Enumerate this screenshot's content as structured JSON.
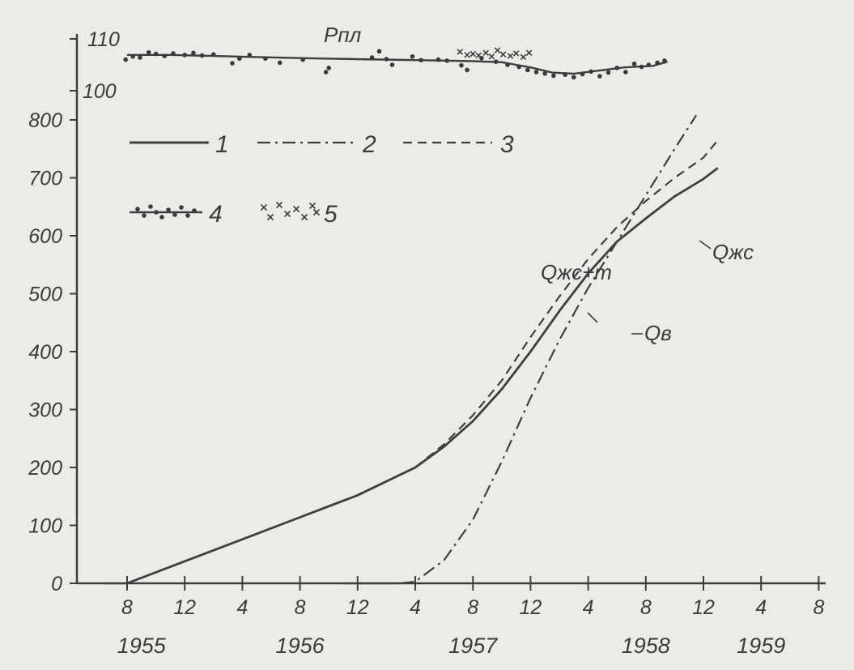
{
  "chart_data": {
    "type": "line",
    "title": "",
    "pressure_panel": {
      "label": "Pпл",
      "ytick_labels": [
        "110",
        "100"
      ],
      "ylim": [
        98,
        112
      ],
      "trend": [
        {
          "x": 8.0,
          "y": 106.9
        },
        {
          "x": 11.0,
          "y": 106.9
        },
        {
          "x": 14.0,
          "y": 106.7
        },
        {
          "x": 17.0,
          "y": 106.5
        },
        {
          "x": 20.0,
          "y": 106.3
        },
        {
          "x": 24.0,
          "y": 106.1
        },
        {
          "x": 28.0,
          "y": 105.9
        },
        {
          "x": 32.0,
          "y": 105.7
        },
        {
          "x": 34.0,
          "y": 105.5
        },
        {
          "x": 36.0,
          "y": 104.5
        },
        {
          "x": 37.5,
          "y": 103.5
        },
        {
          "x": 39.0,
          "y": 103.3
        },
        {
          "x": 40.5,
          "y": 103.8
        },
        {
          "x": 42.5,
          "y": 104.5
        },
        {
          "x": 44.5,
          "y": 104.8
        },
        {
          "x": 45.5,
          "y": 105.6
        }
      ],
      "points": [
        {
          "x": 7.9,
          "y": 106.0
        },
        {
          "x": 8.4,
          "y": 106.6
        },
        {
          "x": 8.9,
          "y": 106.4
        },
        {
          "x": 9.5,
          "y": 107.4
        },
        {
          "x": 10.0,
          "y": 107.1
        },
        {
          "x": 10.6,
          "y": 106.7
        },
        {
          "x": 11.2,
          "y": 107.2
        },
        {
          "x": 12.0,
          "y": 106.9
        },
        {
          "x": 12.6,
          "y": 107.3
        },
        {
          "x": 13.2,
          "y": 106.8
        },
        {
          "x": 14.0,
          "y": 107.0
        },
        {
          "x": 15.3,
          "y": 105.3
        },
        {
          "x": 15.8,
          "y": 106.2
        },
        {
          "x": 16.5,
          "y": 106.9
        },
        {
          "x": 17.6,
          "y": 106.2
        },
        {
          "x": 18.6,
          "y": 105.4
        },
        {
          "x": 20.2,
          "y": 106.0
        },
        {
          "x": 21.8,
          "y": 103.6
        },
        {
          "x": 22.0,
          "y": 104.4
        },
        {
          "x": 25.0,
          "y": 106.4
        },
        {
          "x": 25.5,
          "y": 107.6
        },
        {
          "x": 26.0,
          "y": 106.1
        },
        {
          "x": 26.4,
          "y": 105.0
        },
        {
          "x": 27.8,
          "y": 106.6
        },
        {
          "x": 28.4,
          "y": 105.9
        },
        {
          "x": 29.6,
          "y": 106.0
        },
        {
          "x": 30.2,
          "y": 105.8
        },
        {
          "x": 31.2,
          "y": 104.9
        },
        {
          "x": 31.6,
          "y": 104.0
        },
        {
          "x": 32.6,
          "y": 106.3
        },
        {
          "x": 33.6,
          "y": 105.6
        },
        {
          "x": 34.4,
          "y": 105.0
        },
        {
          "x": 35.2,
          "y": 104.6
        },
        {
          "x": 35.8,
          "y": 104.0
        },
        {
          "x": 36.4,
          "y": 103.6
        },
        {
          "x": 37.0,
          "y": 103.3
        },
        {
          "x": 37.6,
          "y": 102.9
        },
        {
          "x": 38.4,
          "y": 103.1
        },
        {
          "x": 39.0,
          "y": 102.6
        },
        {
          "x": 39.6,
          "y": 103.2
        },
        {
          "x": 40.2,
          "y": 103.7
        },
        {
          "x": 40.8,
          "y": 102.8
        },
        {
          "x": 41.4,
          "y": 103.5
        },
        {
          "x": 42.0,
          "y": 104.4
        },
        {
          "x": 42.6,
          "y": 103.6
        },
        {
          "x": 43.2,
          "y": 105.2
        },
        {
          "x": 43.7,
          "y": 104.6
        },
        {
          "x": 44.2,
          "y": 105.0
        },
        {
          "x": 44.8,
          "y": 105.4
        },
        {
          "x": 45.3,
          "y": 105.8
        }
      ],
      "crosses": [
        {
          "x": 31.1,
          "y": 107.5
        },
        {
          "x": 31.6,
          "y": 106.9
        },
        {
          "x": 32.0,
          "y": 107.1
        },
        {
          "x": 32.4,
          "y": 106.8
        },
        {
          "x": 32.9,
          "y": 107.3
        },
        {
          "x": 33.3,
          "y": 106.6
        },
        {
          "x": 33.7,
          "y": 107.8
        },
        {
          "x": 34.1,
          "y": 107.0
        },
        {
          "x": 34.6,
          "y": 106.7
        },
        {
          "x": 35.0,
          "y": 107.2
        },
        {
          "x": 35.5,
          "y": 106.5
        },
        {
          "x": 35.9,
          "y": 107.3
        }
      ]
    },
    "main_panel": {
      "ytick_labels": [
        "0",
        "100",
        "200",
        "300",
        "400",
        "500",
        "600",
        "700",
        "800"
      ],
      "ylim": [
        0,
        800
      ],
      "series": [
        {
          "label": "Qжс",
          "style": "solid",
          "points": [
            {
              "x": 8,
              "y": 0
            },
            {
              "x": 12,
              "y": 38
            },
            {
              "x": 16,
              "y": 76
            },
            {
              "x": 20,
              "y": 114
            },
            {
              "x": 24,
              "y": 152
            },
            {
              "x": 28,
              "y": 200
            },
            {
              "x": 30,
              "y": 236
            },
            {
              "x": 32,
              "y": 280
            },
            {
              "x": 34,
              "y": 335
            },
            {
              "x": 36,
              "y": 400
            },
            {
              "x": 38,
              "y": 470
            },
            {
              "x": 40,
              "y": 535
            },
            {
              "x": 42,
              "y": 590
            },
            {
              "x": 44,
              "y": 630
            },
            {
              "x": 46,
              "y": 668
            },
            {
              "x": 48,
              "y": 698
            },
            {
              "x": 49,
              "y": 717
            }
          ]
        },
        {
          "label": "Qжс+т",
          "style": "dashed",
          "points": [
            {
              "x": 28,
              "y": 200
            },
            {
              "x": 30,
              "y": 240
            },
            {
              "x": 32,
              "y": 290
            },
            {
              "x": 34,
              "y": 350
            },
            {
              "x": 36,
              "y": 425
            },
            {
              "x": 38,
              "y": 495
            },
            {
              "x": 40,
              "y": 560
            },
            {
              "x": 42,
              "y": 615
            },
            {
              "x": 44,
              "y": 660
            },
            {
              "x": 46,
              "y": 700
            },
            {
              "x": 48,
              "y": 735
            },
            {
              "x": 49,
              "y": 765
            }
          ]
        },
        {
          "label": "Qв",
          "style": "dashdot",
          "points": [
            {
              "x": 27,
              "y": 0
            },
            {
              "x": 28,
              "y": 3
            },
            {
              "x": 30,
              "y": 40
            },
            {
              "x": 32,
              "y": 110
            },
            {
              "x": 34,
              "y": 210
            },
            {
              "x": 36,
              "y": 320
            },
            {
              "x": 38,
              "y": 420
            },
            {
              "x": 40,
              "y": 510
            },
            {
              "x": 42,
              "y": 590
            },
            {
              "x": 44,
              "y": 670
            },
            {
              "x": 46,
              "y": 750
            },
            {
              "x": 47.5,
              "y": 808
            }
          ]
        }
      ]
    },
    "xticks": {
      "values": [
        8,
        12,
        16,
        20,
        24,
        28,
        32,
        36,
        40,
        44,
        48,
        52,
        56
      ],
      "labels": [
        "8",
        "12",
        "4",
        "8",
        "12",
        "4",
        "8",
        "12",
        "4",
        "8",
        "12",
        "4",
        "8"
      ]
    },
    "year_labels": [
      "1955",
      "1956",
      "1957",
      "1958",
      "1959"
    ],
    "xlim": [
      6,
      58
    ],
    "legend": {
      "placement": "top-left",
      "entries": [
        {
          "key": "1",
          "style": "solid"
        },
        {
          "key": "2",
          "style": "dashdot"
        },
        {
          "key": "3",
          "style": "dashed"
        },
        {
          "key": "4",
          "style": "line-dots"
        },
        {
          "key": "5",
          "style": "crosses"
        }
      ]
    }
  }
}
